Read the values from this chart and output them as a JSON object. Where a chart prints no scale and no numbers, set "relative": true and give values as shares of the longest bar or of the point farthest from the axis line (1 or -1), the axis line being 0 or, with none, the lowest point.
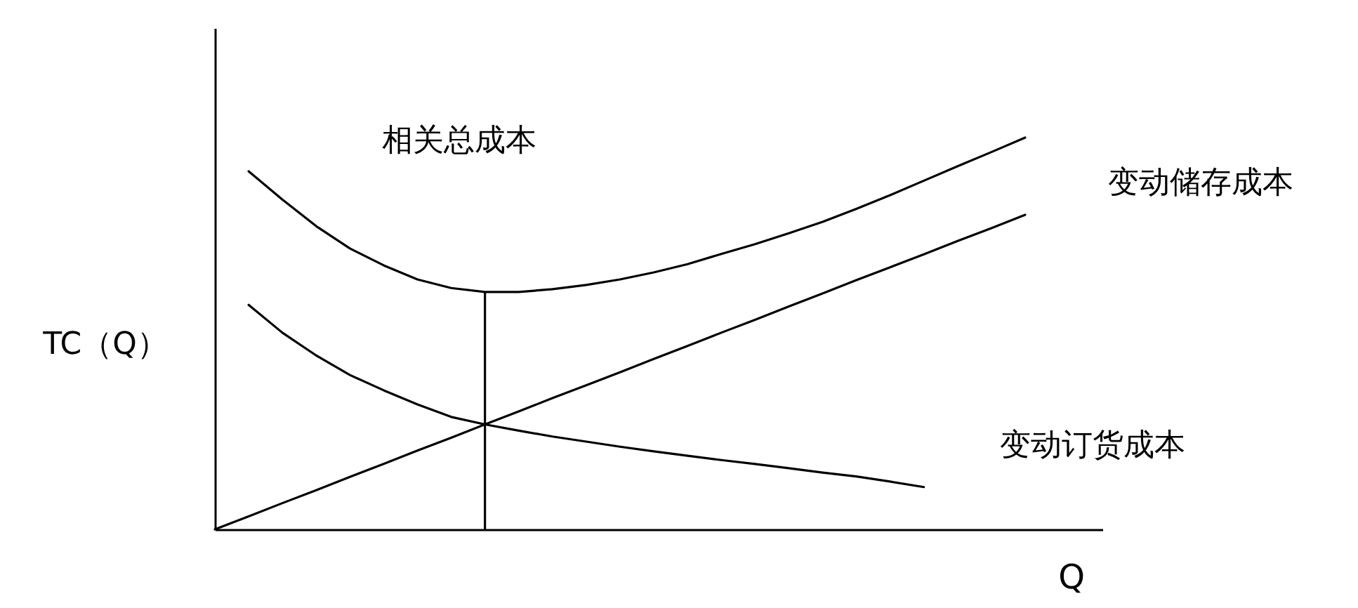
{
  "chart_data": {
    "type": "line",
    "relative": true,
    "xlabel": "Q",
    "ylabel": "TC（Q）",
    "grid": false,
    "categories": [
      null,
      null,
      null,
      null,
      null,
      null,
      null,
      null,
      null,
      null,
      null,
      null,
      null,
      null,
      null,
      null,
      null,
      null,
      null,
      null,
      null,
      null,
      null,
      null,
      null
    ],
    "series": [
      {
        "name": "相关总成本",
        "color": "#000000",
        "values": [
          null,
          0.914,
          0.842,
          0.774,
          0.717,
          0.674,
          0.638,
          0.616,
          0.606,
          0.606,
          0.613,
          0.624,
          0.638,
          0.656,
          0.677,
          0.703,
          0.728,
          0.756,
          0.785,
          0.818,
          0.853,
          0.89,
          0.927,
          0.963,
          1
        ]
      },
      {
        "name": "变动储存成本",
        "color": "#000000",
        "values": [
          0,
          0.033,
          0.067,
          0.1,
          0.134,
          0.167,
          0.201,
          0.234,
          0.268,
          0.301,
          0.335,
          0.368,
          0.401,
          0.435,
          0.468,
          0.502,
          0.535,
          0.569,
          0.602,
          0.636,
          0.669,
          0.702,
          0.736,
          0.769,
          0.803
        ]
      },
      {
        "name": "变动订货成本",
        "color": "#000000",
        "values": [
          null,
          0.573,
          0.502,
          0.444,
          0.394,
          0.355,
          0.319,
          0.287,
          0.268,
          0.252,
          0.237,
          0.224,
          0.211,
          0.199,
          0.188,
          0.177,
          0.167,
          0.156,
          0.145,
          0.135,
          0.122,
          0.108,
          null,
          null,
          null
        ]
      }
    ]
  }
}
